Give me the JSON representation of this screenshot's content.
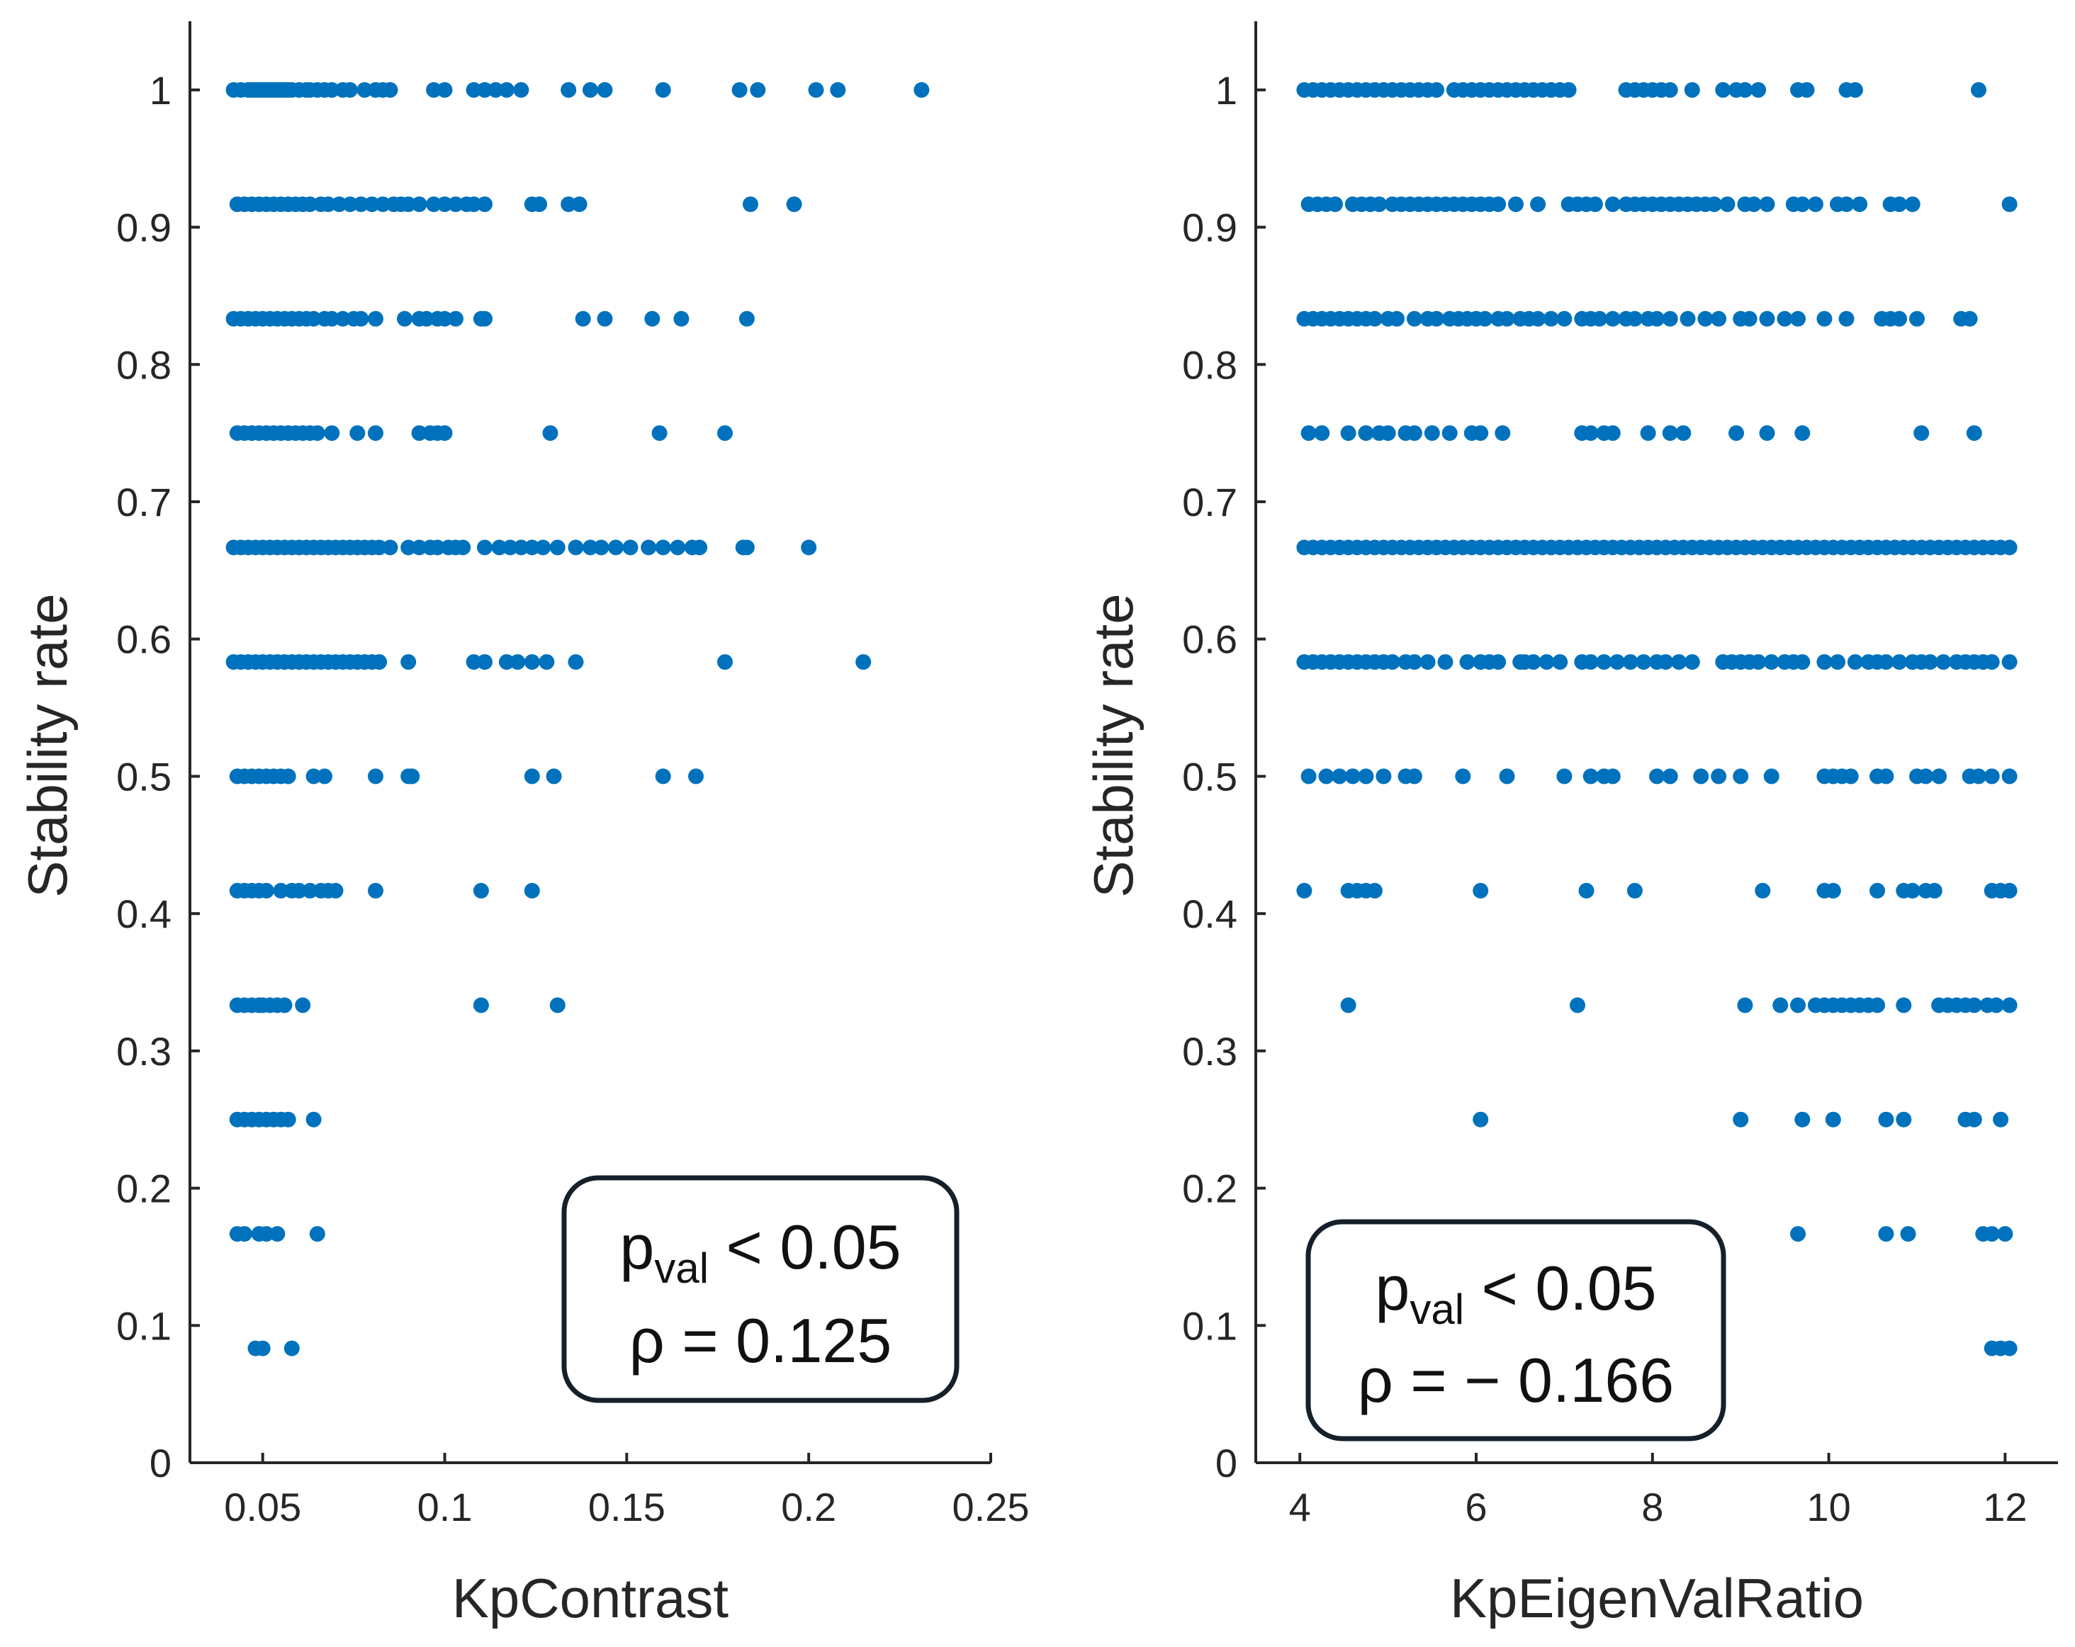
{
  "chart_data": [
    {
      "type": "scatter",
      "xlabel": "KpContrast",
      "ylabel": "Stability rate",
      "xlim": [
        0.03,
        0.25
      ],
      "ylim": [
        0,
        1.05
      ],
      "xticks": [
        0.05,
        0.1,
        0.15,
        0.2,
        0.25
      ],
      "xtick_labels": [
        "0.05",
        "0.1",
        "0.15",
        "0.2",
        "0.25"
      ],
      "yticks": [
        0,
        0.1,
        0.2,
        0.3,
        0.4,
        0.5,
        0.6,
        0.7,
        0.8,
        0.9,
        1
      ],
      "ytick_labels": [
        "0",
        "0.1",
        "0.2",
        "0.3",
        "0.4",
        "0.5",
        "0.6",
        "0.7",
        "0.8",
        "0.9",
        "1"
      ],
      "color": "#0072BD",
      "annotation": {
        "p_main": "p",
        "p_sub": "val",
        "p_rest": " < 0.05",
        "rho": "ρ = 0.125",
        "position": "bottom-right"
      },
      "rows": [
        {
          "y": 1.0,
          "x": [
            0.042,
            0.044,
            0.046,
            0.047,
            0.048,
            0.049,
            0.05,
            0.051,
            0.052,
            0.053,
            0.054,
            0.055,
            0.056,
            0.057,
            0.058,
            0.06,
            0.062,
            0.063,
            0.065,
            0.067,
            0.069,
            0.072,
            0.074,
            0.078,
            0.081,
            0.083,
            0.085,
            0.097,
            0.1,
            0.108,
            0.111,
            0.114,
            0.117,
            0.121,
            0.134,
            0.14,
            0.144,
            0.16,
            0.181,
            0.186,
            0.202,
            0.208,
            0.231
          ]
        },
        {
          "y": 0.9167,
          "x": [
            0.043,
            0.045,
            0.047,
            0.049,
            0.051,
            0.053,
            0.055,
            0.057,
            0.059,
            0.061,
            0.063,
            0.066,
            0.068,
            0.071,
            0.074,
            0.077,
            0.08,
            0.083,
            0.086,
            0.088,
            0.09,
            0.093,
            0.097,
            0.1,
            0.103,
            0.106,
            0.108,
            0.111,
            0.124,
            0.126,
            0.134,
            0.137,
            0.184,
            0.196
          ]
        },
        {
          "y": 0.8333,
          "x": [
            0.042,
            0.044,
            0.046,
            0.048,
            0.05,
            0.052,
            0.054,
            0.056,
            0.058,
            0.06,
            0.062,
            0.064,
            0.067,
            0.069,
            0.072,
            0.075,
            0.077,
            0.081,
            0.089,
            0.093,
            0.095,
            0.098,
            0.1,
            0.103,
            0.11,
            0.111,
            0.138,
            0.144,
            0.157,
            0.165,
            0.183
          ]
        },
        {
          "y": 0.75,
          "x": [
            0.043,
            0.045,
            0.047,
            0.049,
            0.051,
            0.053,
            0.055,
            0.057,
            0.059,
            0.061,
            0.063,
            0.065,
            0.069,
            0.076,
            0.081,
            0.093,
            0.096,
            0.098,
            0.1,
            0.129,
            0.159,
            0.177
          ]
        },
        {
          "y": 0.6667,
          "x": [
            0.042,
            0.044,
            0.046,
            0.048,
            0.05,
            0.052,
            0.054,
            0.056,
            0.058,
            0.06,
            0.062,
            0.064,
            0.066,
            0.068,
            0.07,
            0.072,
            0.074,
            0.076,
            0.078,
            0.08,
            0.082,
            0.085,
            0.09,
            0.093,
            0.096,
            0.098,
            0.101,
            0.103,
            0.105,
            0.111,
            0.115,
            0.118,
            0.121,
            0.124,
            0.127,
            0.131,
            0.136,
            0.14,
            0.143,
            0.147,
            0.151,
            0.156,
            0.16,
            0.164,
            0.168,
            0.17,
            0.182,
            0.183,
            0.2
          ]
        },
        {
          "y": 0.5833,
          "x": [
            0.042,
            0.044,
            0.046,
            0.048,
            0.05,
            0.052,
            0.054,
            0.056,
            0.058,
            0.06,
            0.062,
            0.064,
            0.066,
            0.068,
            0.07,
            0.072,
            0.074,
            0.076,
            0.078,
            0.08,
            0.082,
            0.09,
            0.108,
            0.111,
            0.117,
            0.12,
            0.124,
            0.128,
            0.136,
            0.177,
            0.215
          ]
        },
        {
          "y": 0.5,
          "x": [
            0.043,
            0.045,
            0.047,
            0.049,
            0.051,
            0.053,
            0.055,
            0.057,
            0.064,
            0.067,
            0.081,
            0.09,
            0.091,
            0.124,
            0.13,
            0.16,
            0.169
          ]
        },
        {
          "y": 0.4167,
          "x": [
            0.043,
            0.045,
            0.047,
            0.049,
            0.051,
            0.055,
            0.058,
            0.06,
            0.063,
            0.066,
            0.068,
            0.07,
            0.081,
            0.11,
            0.124
          ]
        },
        {
          "y": 0.3333,
          "x": [
            0.043,
            0.045,
            0.047,
            0.049,
            0.05,
            0.052,
            0.054,
            0.056,
            0.061,
            0.11,
            0.131
          ]
        },
        {
          "y": 0.25,
          "x": [
            0.043,
            0.045,
            0.047,
            0.049,
            0.051,
            0.053,
            0.055,
            0.057,
            0.064
          ]
        },
        {
          "y": 0.1667,
          "x": [
            0.043,
            0.045,
            0.049,
            0.051,
            0.054,
            0.065
          ]
        },
        {
          "y": 0.0833,
          "x": [
            0.048,
            0.05,
            0.058
          ]
        }
      ]
    },
    {
      "type": "scatter",
      "xlabel": "KpEigenValRatio",
      "ylabel": "Stability rate",
      "xlim": [
        3.5,
        12.6
      ],
      "ylim": [
        0,
        1.05
      ],
      "xticks": [
        4,
        6,
        8,
        10,
        12
      ],
      "xtick_labels": [
        "4",
        "6",
        "8",
        "10",
        "12"
      ],
      "yticks": [
        0,
        0.1,
        0.2,
        0.3,
        0.4,
        0.5,
        0.6,
        0.7,
        0.8,
        0.9,
        1
      ],
      "ytick_labels": [
        "0",
        "0.1",
        "0.2",
        "0.3",
        "0.4",
        "0.5",
        "0.6",
        "0.7",
        "0.8",
        "0.9",
        "1"
      ],
      "color": "#0072BD",
      "annotation": {
        "p_main": "p",
        "p_sub": "val",
        "p_rest": " < 0.05",
        "rho": "ρ = − 0.166",
        "position": "bottom-left"
      },
      "rows": [
        {
          "y": 1.0,
          "x": [
            4.05,
            4.15,
            4.25,
            4.35,
            4.45,
            4.55,
            4.65,
            4.75,
            4.85,
            4.95,
            5.05,
            5.15,
            5.25,
            5.35,
            5.45,
            5.55,
            5.75,
            5.85,
            5.95,
            6.05,
            6.15,
            6.25,
            6.35,
            6.45,
            6.55,
            6.65,
            6.75,
            6.85,
            6.95,
            7.05,
            7.7,
            7.8,
            7.9,
            8.0,
            8.1,
            8.2,
            8.45,
            8.8,
            8.95,
            9.05,
            9.2,
            9.65,
            9.75,
            10.2,
            10.3,
            11.7
          ]
        },
        {
          "y": 0.9167,
          "x": [
            4.1,
            4.2,
            4.3,
            4.4,
            4.6,
            4.7,
            4.8,
            4.9,
            5.05,
            5.15,
            5.25,
            5.35,
            5.45,
            5.55,
            5.65,
            5.75,
            5.85,
            5.95,
            6.05,
            6.15,
            6.25,
            6.45,
            6.7,
            7.05,
            7.15,
            7.25,
            7.35,
            7.55,
            7.7,
            7.8,
            7.9,
            8.0,
            8.1,
            8.2,
            8.3,
            8.4,
            8.5,
            8.6,
            8.7,
            8.85,
            9.05,
            9.15,
            9.3,
            9.6,
            9.7,
            9.85,
            10.1,
            10.2,
            10.35,
            10.7,
            10.8,
            10.95,
            12.05
          ]
        },
        {
          "y": 0.8333,
          "x": [
            4.05,
            4.15,
            4.25,
            4.35,
            4.45,
            4.55,
            4.65,
            4.75,
            4.85,
            5.0,
            5.1,
            5.3,
            5.45,
            5.55,
            5.7,
            5.8,
            5.9,
            6.0,
            6.1,
            6.25,
            6.35,
            6.5,
            6.6,
            6.7,
            6.85,
            7.0,
            7.2,
            7.3,
            7.4,
            7.55,
            7.7,
            7.8,
            7.95,
            8.05,
            8.2,
            8.4,
            8.6,
            8.75,
            9.0,
            9.1,
            9.3,
            9.5,
            9.65,
            9.95,
            10.2,
            10.6,
            10.7,
            10.8,
            11.0,
            11.5,
            11.6
          ]
        },
        {
          "y": 0.75,
          "x": [
            4.1,
            4.25,
            4.55,
            4.75,
            4.9,
            5.0,
            5.2,
            5.3,
            5.5,
            5.7,
            5.95,
            6.05,
            6.3,
            7.2,
            7.3,
            7.45,
            7.55,
            7.95,
            8.2,
            8.35,
            8.95,
            9.3,
            9.7,
            11.05,
            11.65
          ]
        },
        {
          "y": 0.6667,
          "x": [
            4.05,
            4.15,
            4.25,
            4.35,
            4.45,
            4.55,
            4.65,
            4.75,
            4.85,
            4.95,
            5.05,
            5.15,
            5.25,
            5.35,
            5.45,
            5.55,
            5.65,
            5.75,
            5.85,
            5.95,
            6.05,
            6.15,
            6.25,
            6.35,
            6.45,
            6.55,
            6.65,
            6.75,
            6.85,
            6.95,
            7.05,
            7.15,
            7.25,
            7.35,
            7.45,
            7.55,
            7.65,
            7.75,
            7.85,
            7.95,
            8.05,
            8.15,
            8.25,
            8.35,
            8.45,
            8.55,
            8.65,
            8.75,
            8.85,
            8.95,
            9.05,
            9.15,
            9.25,
            9.35,
            9.45,
            9.55,
            9.65,
            9.75,
            9.85,
            9.95,
            10.05,
            10.15,
            10.25,
            10.35,
            10.45,
            10.55,
            10.65,
            10.75,
            10.85,
            10.95,
            11.05,
            11.15,
            11.25,
            11.35,
            11.45,
            11.55,
            11.65,
            11.75,
            11.85,
            11.95,
            12.05
          ]
        },
        {
          "y": 0.5833,
          "x": [
            4.05,
            4.15,
            4.25,
            4.35,
            4.45,
            4.55,
            4.65,
            4.75,
            4.85,
            4.95,
            5.05,
            5.2,
            5.3,
            5.45,
            5.65,
            5.9,
            6.05,
            6.15,
            6.25,
            6.5,
            6.55,
            6.65,
            6.8,
            6.95,
            7.2,
            7.3,
            7.45,
            7.6,
            7.75,
            7.9,
            8.05,
            8.15,
            8.3,
            8.45,
            8.8,
            8.9,
            9.0,
            9.1,
            9.2,
            9.35,
            9.5,
            9.6,
            9.7,
            9.95,
            10.1,
            10.3,
            10.45,
            10.55,
            10.65,
            10.8,
            10.95,
            11.05,
            11.15,
            11.3,
            11.45,
            11.55,
            11.65,
            11.75,
            11.85,
            12.05
          ]
        },
        {
          "y": 0.5,
          "x": [
            4.1,
            4.3,
            4.45,
            4.6,
            4.75,
            4.95,
            5.2,
            5.3,
            5.85,
            6.35,
            7.0,
            7.3,
            7.45,
            7.55,
            8.05,
            8.2,
            8.55,
            8.75,
            9.0,
            9.35,
            9.95,
            10.05,
            10.15,
            10.25,
            10.55,
            10.65,
            11.0,
            11.1,
            11.25,
            11.6,
            11.7,
            11.85,
            12.05
          ]
        },
        {
          "y": 0.4167,
          "x": [
            4.05,
            4.55,
            4.65,
            4.75,
            4.85,
            6.05,
            7.25,
            7.8,
            9.25,
            9.95,
            10.05,
            10.55,
            10.85,
            10.95,
            11.1,
            11.2,
            11.85,
            11.95,
            12.05
          ]
        },
        {
          "y": 0.3333,
          "x": [
            4.55,
            7.15,
            9.05,
            9.45,
            9.65,
            9.85,
            9.95,
            10.05,
            10.15,
            10.25,
            10.35,
            10.45,
            10.55,
            10.85,
            11.25,
            11.35,
            11.45,
            11.55,
            11.65,
            11.8,
            11.9,
            12.05
          ]
        },
        {
          "y": 0.25,
          "x": [
            6.05,
            9.0,
            9.7,
            10.05,
            10.65,
            10.85,
            11.55,
            11.65,
            11.95
          ]
        },
        {
          "y": 0.1667,
          "x": [
            9.65,
            10.65,
            10.9,
            11.75,
            11.85,
            12.0
          ]
        },
        {
          "y": 0.0833,
          "x": [
            11.85,
            11.95,
            12.05
          ]
        }
      ]
    }
  ]
}
